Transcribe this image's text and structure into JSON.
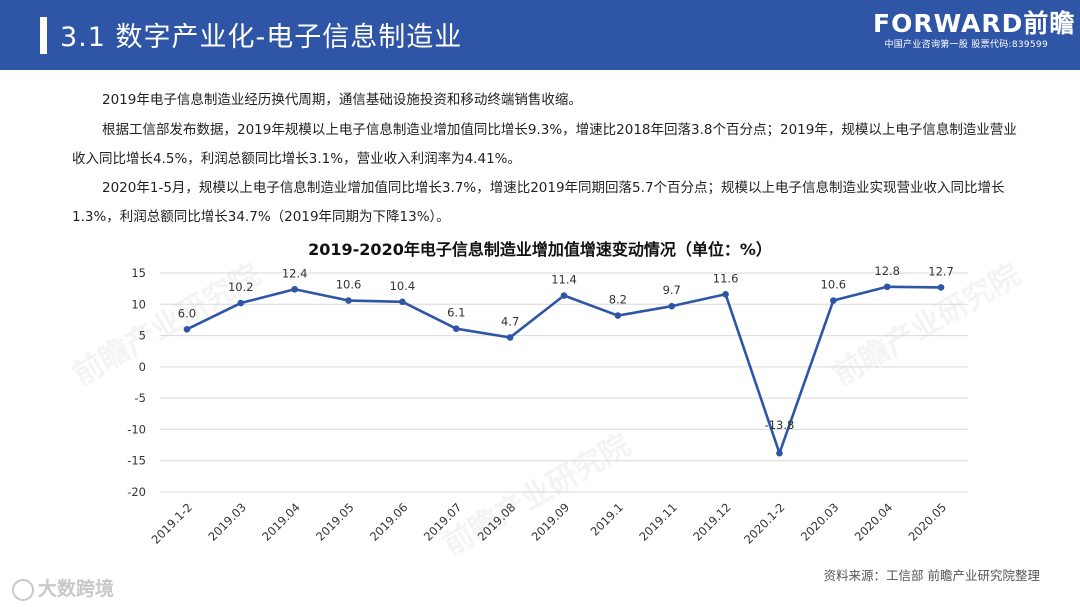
{
  "header": {
    "title": "3.1 数字产业化-电子信息制造业",
    "logo_text": "FORWARD前瞻",
    "logo_sub": "中国产业咨询第一股 股票代码:839599"
  },
  "paragraphs": [
    "2019年电子信息制造业经历换代周期，通信基础设施投资和移动终端销售收缩。",
    "根据工信部发布数据，2019年规模以上电子信息制造业增加值同比增长9.3%，增速比2018年回落3.8个百分点；2019年，规模以上电子信息制造业营业收入同比增长4.5%，利润总额同比增长3.1%，营业收入利润率为4.41%。",
    "2020年1-5月，规模以上电子信息制造业增加值同比增长3.7%，增速比2019年同期回落5.7个百分点；规模以上电子信息制造业实现营业收入同比增长1.3%，利润总额同比增长34.7%（2019年同期为下降13%）。"
  ],
  "chart_data": {
    "type": "line",
    "title": "2019-2020年电子信息制造业增加值增速变动情况（单位：%）",
    "categories": [
      "2019.1-2",
      "2019.03",
      "2019.04",
      "2019.05",
      "2019.06",
      "2019.07",
      "2019.08",
      "2019.09",
      "2019.1",
      "2019.11",
      "2019.12",
      "2020.1-2",
      "2020.03",
      "2020.04",
      "2020.05"
    ],
    "values": [
      6.0,
      10.2,
      12.4,
      10.6,
      10.4,
      6.1,
      4.7,
      11.4,
      8.2,
      9.7,
      11.6,
      -13.8,
      10.6,
      12.8,
      12.7
    ],
    "data_labels": [
      "6.0",
      "10.2",
      "12.4",
      "10.6",
      "10.4",
      "6.1",
      "4.7",
      "11.4",
      "8.2",
      "9.7",
      "11.6",
      "-13.8",
      "10.6",
      "12.8",
      "12.7"
    ],
    "ylim": [
      -20,
      15
    ],
    "yticks": [
      15,
      10,
      5,
      0,
      -5,
      -10,
      -15,
      -20
    ],
    "grid": true,
    "line_color": "#2f56a6"
  },
  "source": "资料来源：工信部 前瞻产业研究院整理",
  "watermark_bottom": "大数跨境",
  "watermark_text": "前瞻产业研究院"
}
